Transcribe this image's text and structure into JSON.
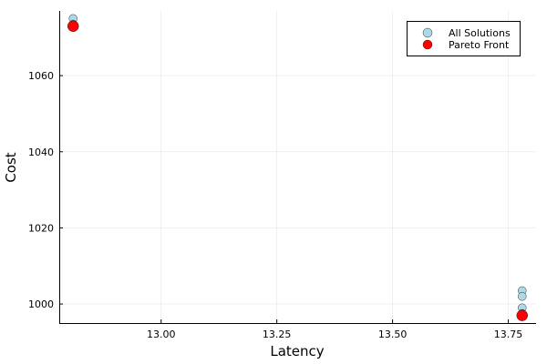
{
  "chart_data": {
    "type": "scatter",
    "title": "",
    "xlabel": "Latency",
    "ylabel": "Cost",
    "xlim": [
      12.78,
      13.81
    ],
    "ylim": [
      995,
      1077
    ],
    "xticks": [
      13.0,
      13.25,
      13.5,
      13.75
    ],
    "xtick_labels": [
      "13.00",
      "13.25",
      "13.50",
      "13.75"
    ],
    "yticks": [
      1000,
      1020,
      1040,
      1060
    ],
    "ytick_labels": [
      "1000",
      "1020",
      "1040",
      "1060"
    ],
    "grid": true,
    "legend_position": "top-right",
    "series": [
      {
        "name": "All Solutions",
        "color": "#add8e6",
        "points": [
          {
            "x": 12.81,
            "y": 1075.0
          },
          {
            "x": 12.81,
            "y": 1073.5
          },
          {
            "x": 13.78,
            "y": 1003.5
          },
          {
            "x": 13.78,
            "y": 1002.0
          },
          {
            "x": 13.78,
            "y": 999.0
          },
          {
            "x": 13.78,
            "y": 997.5
          }
        ]
      },
      {
        "name": "Pareto Front",
        "color": "#ff0000",
        "points": [
          {
            "x": 12.81,
            "y": 1073.0
          },
          {
            "x": 13.78,
            "y": 997.0
          }
        ]
      }
    ]
  }
}
